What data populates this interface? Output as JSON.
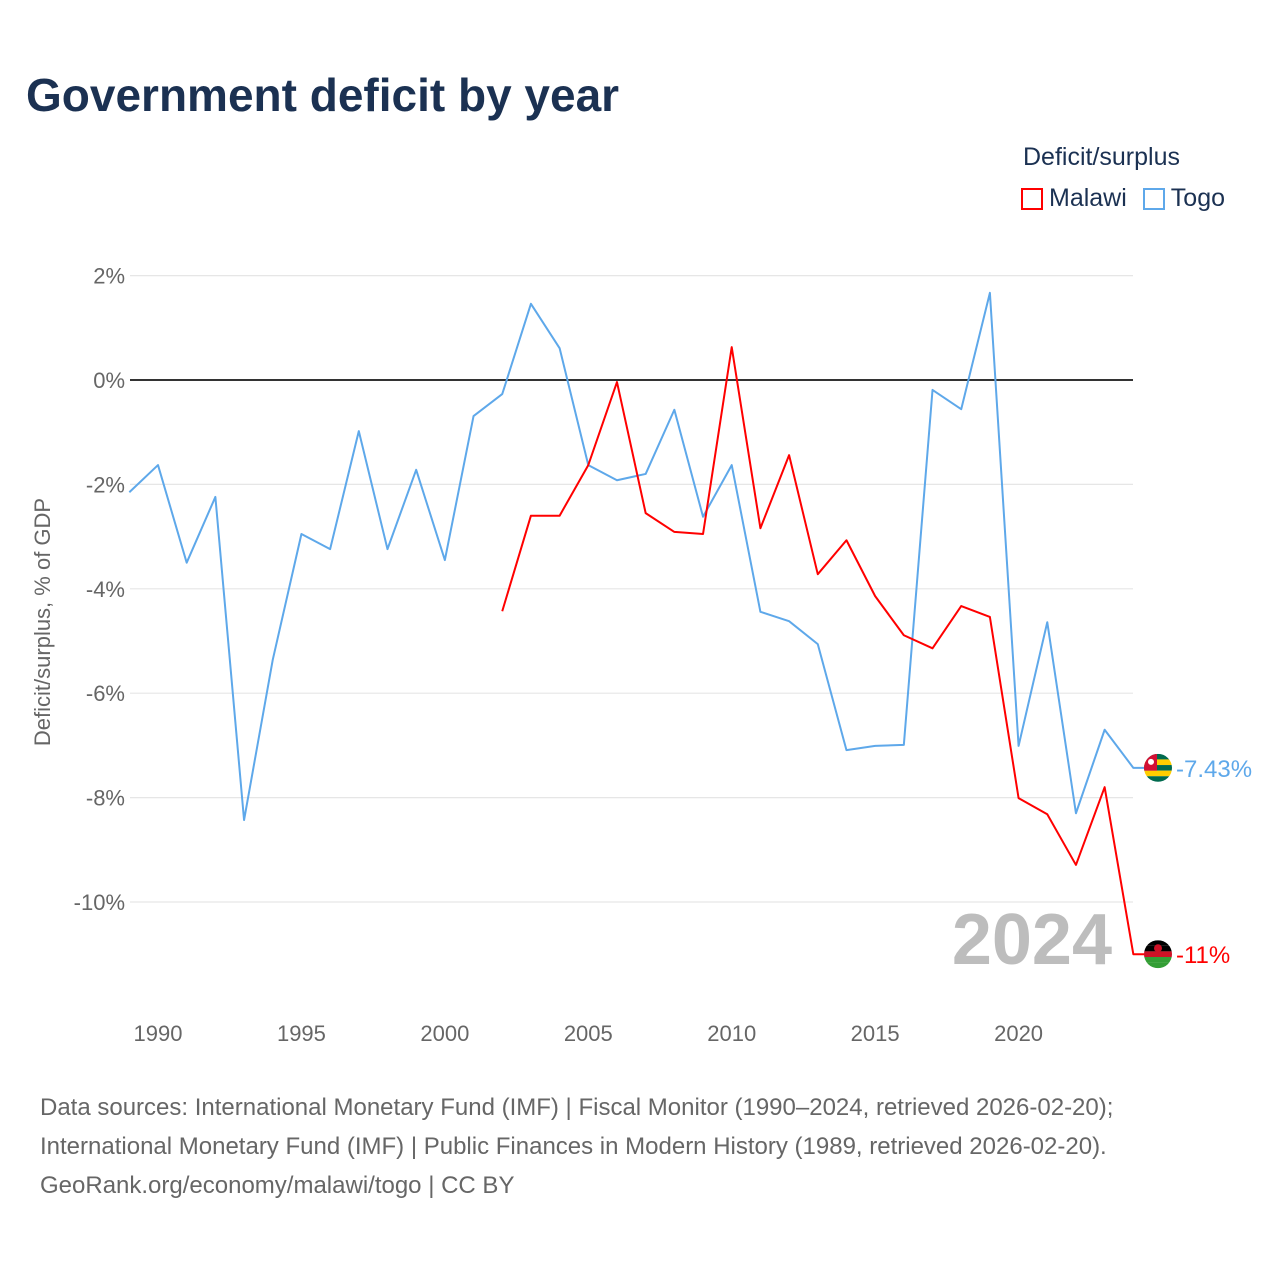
{
  "title": "Government deficit by year",
  "legend": {
    "title": "Deficit/surplus",
    "items": [
      {
        "name": "Malawi",
        "color": "#ff0000"
      },
      {
        "name": "Togo",
        "color": "#5ea8ea"
      }
    ]
  },
  "footer": {
    "line1": "Data sources: International Monetary Fund (IMF) | Fiscal Monitor (1990–2024, retrieved 2026-02-20);",
    "line2": "International Monetary Fund (IMF) | Public Finances in Modern History (1989, retrieved 2026-02-20).",
    "line3": "GeoRank.org/economy/malawi/togo | CC BY"
  },
  "chart_data": {
    "type": "line",
    "title": "Government deficit by year",
    "ylabel": "Deficit/surplus, % of GDP",
    "xlabel": "",
    "xlim": [
      1989,
      2024
    ],
    "ylim": [
      -12,
      2.5
    ],
    "xticks": [
      1990,
      1995,
      2000,
      2005,
      2010,
      2015,
      2020
    ],
    "yticks": [
      2,
      0,
      -2,
      -4,
      -6,
      -8,
      -10
    ],
    "ytick_labels": [
      "2%",
      "0%",
      "-2%",
      "-4%",
      "-6%",
      "-8%",
      "-10%"
    ],
    "watermark_year": "2024",
    "series": [
      {
        "name": "Togo",
        "color": "#5ea8ea",
        "end_label": "-7.43%",
        "x": [
          1989,
          1990,
          1991,
          1992,
          1993,
          1994,
          1995,
          1996,
          1997,
          1998,
          1999,
          2000,
          2001,
          2002,
          2003,
          2004,
          2005,
          2006,
          2007,
          2008,
          2009,
          2010,
          2011,
          2012,
          2013,
          2014,
          2015,
          2016,
          2017,
          2018,
          2019,
          2020,
          2021,
          2022,
          2023,
          2024
        ],
        "values": [
          -2.15,
          -1.63,
          -3.5,
          -2.24,
          -8.43,
          -5.36,
          -2.95,
          -3.24,
          -0.98,
          -3.24,
          -1.72,
          -3.45,
          -0.69,
          -0.27,
          1.46,
          0.61,
          -1.63,
          -1.92,
          -1.8,
          -0.57,
          -2.62,
          -1.63,
          -4.44,
          -4.62,
          -5.06,
          -7.09,
          -7.01,
          -6.99,
          -0.19,
          -0.56,
          1.67,
          -7.01,
          -4.64,
          -8.3,
          -6.7,
          -7.43
        ]
      },
      {
        "name": "Malawi",
        "color": "#ff0000",
        "end_label": "-11%",
        "x": [
          2002,
          2003,
          2004,
          2005,
          2006,
          2007,
          2008,
          2009,
          2010,
          2011,
          2012,
          2013,
          2014,
          2015,
          2016,
          2017,
          2018,
          2019,
          2020,
          2021,
          2022,
          2023,
          2024
        ],
        "values": [
          -4.43,
          -2.6,
          -2.6,
          -1.63,
          -0.04,
          -2.55,
          -2.91,
          -2.95,
          0.63,
          -2.84,
          -1.44,
          -3.72,
          -3.07,
          -4.14,
          -4.89,
          -5.14,
          -4.33,
          -4.54,
          -8.01,
          -8.32,
          -9.29,
          -7.8,
          -11
        ]
      }
    ]
  }
}
